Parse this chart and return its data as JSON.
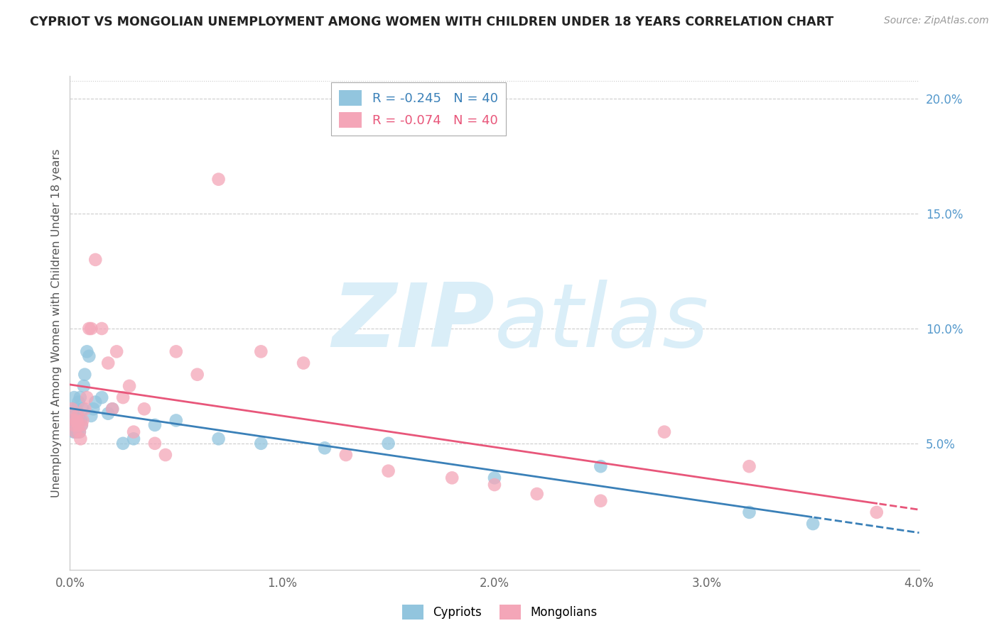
{
  "title": "CYPRIOT VS MONGOLIAN UNEMPLOYMENT AMONG WOMEN WITH CHILDREN UNDER 18 YEARS CORRELATION CHART",
  "source": "Source: ZipAtlas.com",
  "ylabel": "Unemployment Among Women with Children Under 18 years",
  "xmin": 0.0,
  "xmax": 0.04,
  "ymin": -0.005,
  "ymax": 0.21,
  "yticks_right": [
    0.05,
    0.1,
    0.15,
    0.2
  ],
  "ytick_labels_right": [
    "5.0%",
    "10.0%",
    "15.0%",
    "20.0%"
  ],
  "xticks": [
    0.0,
    0.01,
    0.02,
    0.03,
    0.04
  ],
  "xtick_labels": [
    "0.0%",
    "1.0%",
    "2.0%",
    "3.0%",
    "4.0%"
  ],
  "legend_entry1": "R = -0.245   N = 40",
  "legend_entry2": "R = -0.074   N = 40",
  "color_blue": "#92c5de",
  "color_pink": "#f4a6b8",
  "color_blue_line": "#3a80b8",
  "color_pink_line": "#e8567a",
  "watermark_color": "#daeef8",
  "cypriot_x": [
    0.0001,
    0.00015,
    0.00018,
    0.0002,
    0.00022,
    0.00025,
    0.00028,
    0.0003,
    0.00032,
    0.00035,
    0.00038,
    0.0004,
    0.00042,
    0.00045,
    0.00048,
    0.0005,
    0.00055,
    0.0006,
    0.00065,
    0.0007,
    0.0008,
    0.0009,
    0.001,
    0.0011,
    0.0012,
    0.0015,
    0.0018,
    0.002,
    0.0025,
    0.003,
    0.004,
    0.005,
    0.007,
    0.009,
    0.012,
    0.015,
    0.02,
    0.025,
    0.032,
    0.035
  ],
  "cypriot_y": [
    0.065,
    0.06,
    0.055,
    0.07,
    0.06,
    0.055,
    0.06,
    0.065,
    0.058,
    0.055,
    0.062,
    0.068,
    0.06,
    0.055,
    0.07,
    0.06,
    0.058,
    0.065,
    0.075,
    0.08,
    0.09,
    0.088,
    0.062,
    0.065,
    0.068,
    0.07,
    0.063,
    0.065,
    0.05,
    0.052,
    0.058,
    0.06,
    0.052,
    0.05,
    0.048,
    0.05,
    0.035,
    0.04,
    0.02,
    0.015
  ],
  "mongolian_x": [
    0.0001,
    0.00015,
    0.0002,
    0.00025,
    0.0003,
    0.00035,
    0.0004,
    0.00045,
    0.0005,
    0.00055,
    0.0006,
    0.0007,
    0.0008,
    0.0009,
    0.001,
    0.0012,
    0.0015,
    0.0018,
    0.002,
    0.0022,
    0.0025,
    0.0028,
    0.003,
    0.0035,
    0.004,
    0.0045,
    0.005,
    0.006,
    0.007,
    0.009,
    0.011,
    0.013,
    0.015,
    0.018,
    0.02,
    0.022,
    0.025,
    0.028,
    0.032,
    0.038
  ],
  "mongolian_y": [
    0.065,
    0.06,
    0.058,
    0.055,
    0.06,
    0.062,
    0.058,
    0.055,
    0.052,
    0.058,
    0.06,
    0.065,
    0.07,
    0.1,
    0.1,
    0.13,
    0.1,
    0.085,
    0.065,
    0.09,
    0.07,
    0.075,
    0.055,
    0.065,
    0.05,
    0.045,
    0.09,
    0.08,
    0.165,
    0.09,
    0.085,
    0.045,
    0.038,
    0.035,
    0.032,
    0.028,
    0.025,
    0.055,
    0.04,
    0.02
  ]
}
